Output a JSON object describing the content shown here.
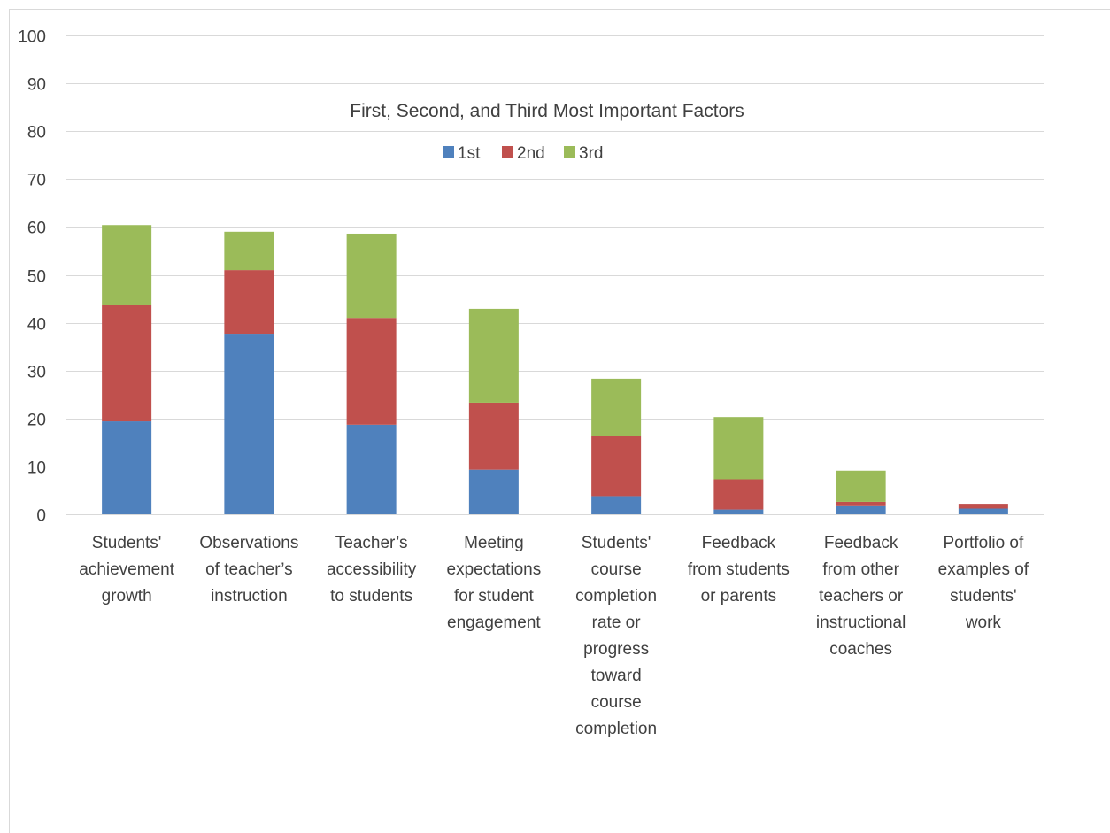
{
  "chart_data": {
    "type": "bar",
    "stacked": true,
    "title": "First, Second, and Third Most Important Factors",
    "xlabel": "",
    "ylabel": "",
    "ylim": [
      0,
      100
    ],
    "yticks": [
      0,
      10,
      20,
      30,
      40,
      50,
      60,
      70,
      80,
      90,
      100
    ],
    "grid": true,
    "legend_position": "top-center",
    "categories": [
      "Students' achievement growth",
      "Observations of teacher’s instruction",
      "Teacher’s accessibility to students",
      "Meeting expectations for student engagement",
      "Students' course completion rate or progress toward course completion",
      "Feedback from students or parents",
      "Feedback from other teachers or instructional coaches",
      "Portfolio of examples of students' work"
    ],
    "category_lines": [
      [
        "Students'",
        "achievement",
        "growth"
      ],
      [
        "Observations",
        "of teacher’s",
        "instruction"
      ],
      [
        "Teacher’s",
        "accessibility",
        "to students"
      ],
      [
        "Meeting",
        "expectations",
        "for student",
        "engagement"
      ],
      [
        "Students'",
        "course",
        "completion",
        "rate or",
        "progress",
        "toward",
        "course",
        "completion"
      ],
      [
        "Feedback",
        "from students",
        "or parents"
      ],
      [
        "Feedback",
        "from other",
        "teachers or",
        "instructional",
        "coaches"
      ],
      [
        "Portfolio of",
        "examples of",
        "students'",
        "work"
      ]
    ],
    "series": [
      {
        "name": "1st",
        "color": "#4F81BD",
        "values": [
          19.4,
          37.7,
          18.7,
          9.3,
          3.8,
          1.0,
          1.7,
          1.2
        ]
      },
      {
        "name": "2nd",
        "color": "#C0504D",
        "values": [
          24.4,
          13.3,
          22.3,
          14.0,
          12.5,
          6.3,
          0.9,
          1.0
        ]
      },
      {
        "name": "3rd",
        "color": "#9BBB59",
        "values": [
          16.6,
          8.0,
          17.6,
          19.6,
          12.0,
          13.0,
          6.5,
          0.0
        ]
      }
    ]
  }
}
